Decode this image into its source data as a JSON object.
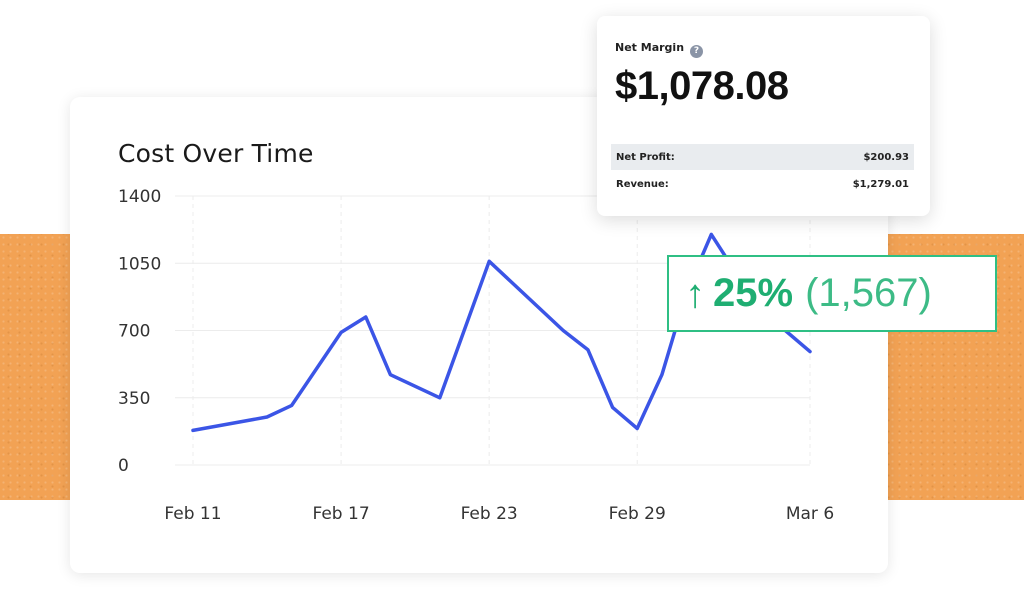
{
  "chart_data": {
    "type": "line",
    "title": "Cost Over Time",
    "xlabel": "",
    "ylabel": "",
    "ylim": [
      0,
      1400
    ],
    "y_ticks": [
      0,
      350,
      700,
      1050,
      1400
    ],
    "x_tick_labels": [
      "Feb 11",
      "Feb 17",
      "Feb 23",
      "Feb 29",
      "Mar 6"
    ],
    "grid": true,
    "color": "#3b55e6",
    "series": [
      {
        "x": [
          "Feb 11",
          "Feb 14",
          "Feb 15",
          "Feb 17",
          "Feb 18",
          "Feb 19",
          "Feb 21",
          "Feb 23",
          "Feb 26",
          "Feb 27",
          "Feb 28",
          "Feb 29",
          "Feb 30",
          "Mar 1",
          "Mar 2",
          "Mar 3",
          "Mar 4",
          "Mar 5",
          "Mar 6"
        ],
        "values": [
          180,
          250,
          310,
          690,
          770,
          470,
          350,
          1060,
          700,
          600,
          300,
          190,
          470,
          900,
          1200,
          1000,
          800,
          700,
          590
        ]
      }
    ]
  },
  "net_margin": {
    "label": "Net Margin",
    "help_icon": "question-icon",
    "value": "$1,078.08",
    "rows": [
      {
        "label": "Net Profit:",
        "value": "$200.93"
      },
      {
        "label": "Revenue:",
        "value": "$1,279.01"
      }
    ]
  },
  "change_badge": {
    "arrow_icon": "arrow-up-icon",
    "arrow": "↑",
    "percent": "25%",
    "count": "(1,567)",
    "color": "#1fae72"
  }
}
